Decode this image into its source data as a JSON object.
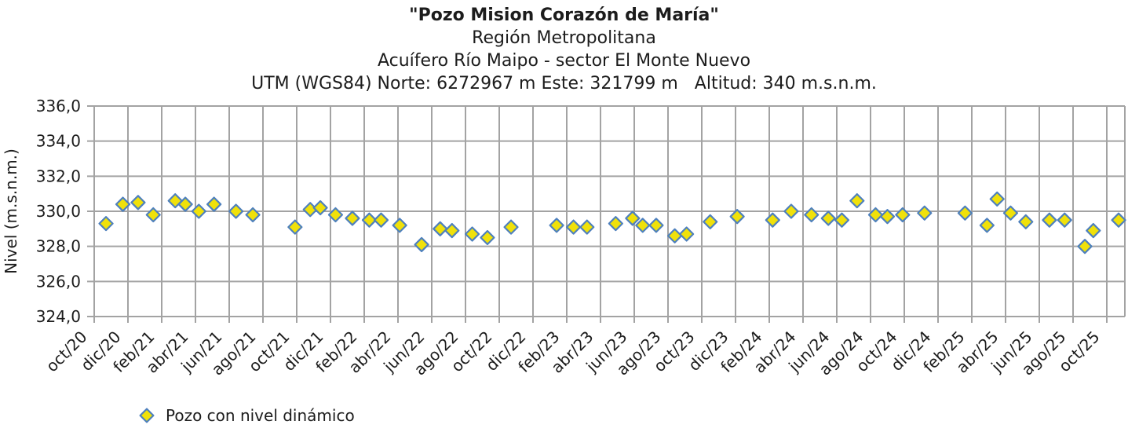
{
  "header": {
    "title": "\"Pozo Mision Corazón de María\"",
    "subtitle_region": "Región Metropolitana",
    "subtitle_aquifer": "Acuífero Río Maipo - sector El Monte Nuevo",
    "subtitle_utm": "UTM (WGS84) Norte: 6272967 m Este: 321799 m   Altitud: 340 m.s.n.m."
  },
  "legend": {
    "label": "Pozo con nivel dinámico"
  },
  "colors": {
    "marker_fill": "#F0E10A",
    "marker_stroke": "#4E80BD",
    "grid": "#A3A3A3",
    "text": "#1C1C1C"
  },
  "chart_data": {
    "type": "scatter",
    "title": "\"Pozo Mision Corazón de María\"",
    "ylabel": "Nivel (m.s.n.m.)",
    "xlabel": "",
    "ylim": [
      324.0,
      336.0
    ],
    "y_tick_step": 2.0,
    "y_tick_labels": [
      "336,0",
      "334,0",
      "332,0",
      "330,0",
      "328,0",
      "326,0",
      "324,0"
    ],
    "x_tick_labels": [
      "oct/20",
      "dic/20",
      "feb/21",
      "abr/21",
      "jun/21",
      "ago/21",
      "oct/21",
      "dic/21",
      "feb/22",
      "abr/22",
      "jun/22",
      "ago/22",
      "oct/22",
      "dic/22",
      "feb/23",
      "abr/23",
      "jun/23",
      "ago/23",
      "oct/23",
      "dic/23",
      "feb/24",
      "abr/24",
      "jun/24",
      "ago/24",
      "oct/24",
      "dic/24",
      "feb/25",
      "abr/25",
      "jun/25",
      "ago/25",
      "oct/25"
    ],
    "x_unit": "months since oct/20 tick (ticks every 2 months)",
    "grid": true,
    "legend_position": "bottom-left",
    "series": [
      {
        "name": "Pozo con nivel dinámico",
        "marker": "diamond",
        "points": [
          {
            "date": "oct/20",
            "x": 0.7,
            "v": 329.3
          },
          {
            "date": "nov/20",
            "x": 1.7,
            "v": 330.4
          },
          {
            "date": "dic/20",
            "x": 2.6,
            "v": 330.5
          },
          {
            "date": "ene/21",
            "x": 3.5,
            "v": 329.8
          },
          {
            "date": "feb/21",
            "x": 4.8,
            "v": 330.6
          },
          {
            "date": "mar/21",
            "x": 5.4,
            "v": 330.4
          },
          {
            "date": "abr/21",
            "x": 6.2,
            "v": 330.0
          },
          {
            "date": "may/21",
            "x": 7.1,
            "v": 330.4
          },
          {
            "date": "jun/21",
            "x": 8.4,
            "v": 330.0
          },
          {
            "date": "jul/21",
            "x": 9.4,
            "v": 329.8
          },
          {
            "date": "sep/21",
            "x": 11.9,
            "v": 329.1
          },
          {
            "date": "oct/21",
            "x": 12.8,
            "v": 330.1
          },
          {
            "date": "nov/21",
            "x": 13.4,
            "v": 330.2
          },
          {
            "date": "dic/21",
            "x": 14.3,
            "v": 329.8
          },
          {
            "date": "ene/22",
            "x": 15.3,
            "v": 329.6
          },
          {
            "date": "feb/22",
            "x": 16.3,
            "v": 329.5
          },
          {
            "date": "mar/22",
            "x": 17.0,
            "v": 329.5
          },
          {
            "date": "abr/22",
            "x": 18.1,
            "v": 329.2
          },
          {
            "date": "may/22",
            "x": 19.4,
            "v": 328.1
          },
          {
            "date": "jun/22",
            "x": 20.5,
            "v": 329.0
          },
          {
            "date": "jul/22",
            "x": 21.2,
            "v": 328.9
          },
          {
            "date": "ago/22",
            "x": 22.4,
            "v": 328.7
          },
          {
            "date": "sep/22",
            "x": 23.3,
            "v": 328.5
          },
          {
            "date": "oct/22",
            "x": 24.7,
            "v": 329.1
          },
          {
            "date": "ene/23",
            "x": 27.4,
            "v": 329.2
          },
          {
            "date": "feb/23",
            "x": 28.4,
            "v": 329.1
          },
          {
            "date": "mar/23",
            "x": 29.2,
            "v": 329.1
          },
          {
            "date": "abr/23",
            "x": 30.9,
            "v": 329.3
          },
          {
            "date": "may/23",
            "x": 31.9,
            "v": 329.6
          },
          {
            "date": "jun/23",
            "x": 32.5,
            "v": 329.2
          },
          {
            "date": "jul/23",
            "x": 33.3,
            "v": 329.2
          },
          {
            "date": "ago/23",
            "x": 34.4,
            "v": 328.6
          },
          {
            "date": "sep/23",
            "x": 35.1,
            "v": 328.7
          },
          {
            "date": "oct/23",
            "x": 36.5,
            "v": 329.4
          },
          {
            "date": "dic/23",
            "x": 38.1,
            "v": 329.7
          },
          {
            "date": "feb/24",
            "x": 40.2,
            "v": 329.5
          },
          {
            "date": "mar/24",
            "x": 41.3,
            "v": 330.0
          },
          {
            "date": "abr/24",
            "x": 42.5,
            "v": 329.8
          },
          {
            "date": "may/24",
            "x": 43.5,
            "v": 329.6
          },
          {
            "date": "jun/24",
            "x": 44.3,
            "v": 329.5
          },
          {
            "date": "jul/24",
            "x": 45.2,
            "v": 330.6
          },
          {
            "date": "ago/24",
            "x": 46.3,
            "v": 329.8
          },
          {
            "date": "sep/24",
            "x": 47.0,
            "v": 329.7
          },
          {
            "date": "oct/24",
            "x": 47.9,
            "v": 329.8
          },
          {
            "date": "nov/24",
            "x": 49.2,
            "v": 329.9
          },
          {
            "date": "ene/25",
            "x": 51.6,
            "v": 329.9
          },
          {
            "date": "feb/25",
            "x": 52.9,
            "v": 329.2
          },
          {
            "date": "mar/25",
            "x": 53.5,
            "v": 330.7
          },
          {
            "date": "abr/25",
            "x": 54.3,
            "v": 329.9
          },
          {
            "date": "may/25",
            "x": 55.2,
            "v": 329.4
          },
          {
            "date": "jun/25",
            "x": 56.6,
            "v": 329.5
          },
          {
            "date": "jul/25",
            "x": 57.5,
            "v": 329.5
          },
          {
            "date": "ago/25",
            "x": 58.7,
            "v": 328.0
          },
          {
            "date": "sep/25",
            "x": 59.2,
            "v": 328.9
          },
          {
            "date": "oct/25",
            "x": 60.7,
            "v": 329.5
          }
        ]
      }
    ]
  }
}
